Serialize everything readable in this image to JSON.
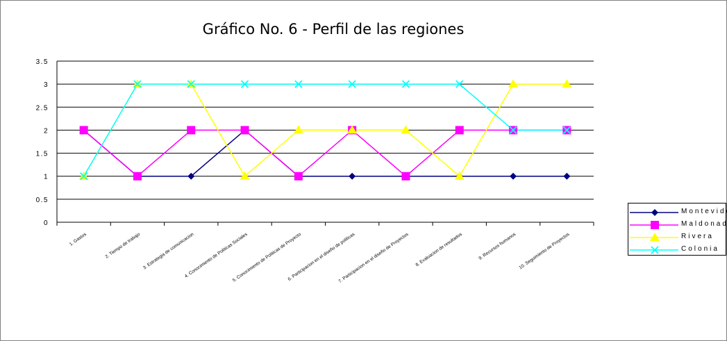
{
  "chart_data": {
    "type": "line",
    "title": "Gráfico No. 6 - Perfil de las regiones",
    "xlabel": "",
    "ylabel": "",
    "ylim": [
      0,
      3.5
    ],
    "yticks": [
      "0",
      "0.5",
      "1",
      "1.5",
      "2",
      "2.5",
      "3",
      "3.5"
    ],
    "categories": [
      "1. Gastos",
      "2. Tiempo de trabajo",
      "3. Estrategia de comunicacion",
      "4. Conocimiento de Politicas Sociales",
      "5. Conocimiento de Politicas de Proyecto",
      "6. Participacion en el diseño de politicas",
      "7. Participacion en el diseño de Proyectos",
      "8. Evaluacion de resultados",
      "9. Recursos humanos",
      "10. Seguimiento de Proyectos"
    ],
    "series": [
      {
        "name": "Montevideo",
        "color": "#000080",
        "marker": "diamond",
        "values": [
          2,
          1,
          1,
          2,
          1,
          1,
          1,
          1,
          1,
          1
        ]
      },
      {
        "name": "Maldonado",
        "color": "#ff00ff",
        "marker": "square",
        "values": [
          2,
          1,
          2,
          2,
          1,
          2,
          1,
          2,
          2,
          2
        ]
      },
      {
        "name": "Rivera",
        "color": "#ffff00",
        "marker": "triangle",
        "values": [
          1,
          3,
          3,
          1,
          2,
          2,
          2,
          1,
          3,
          3
        ]
      },
      {
        "name": "Colonia",
        "color": "#00ffff",
        "marker": "x",
        "values": [
          1,
          3,
          3,
          3,
          3,
          3,
          3,
          3,
          2,
          2
        ]
      }
    ],
    "grid": true,
    "legend": "right"
  }
}
